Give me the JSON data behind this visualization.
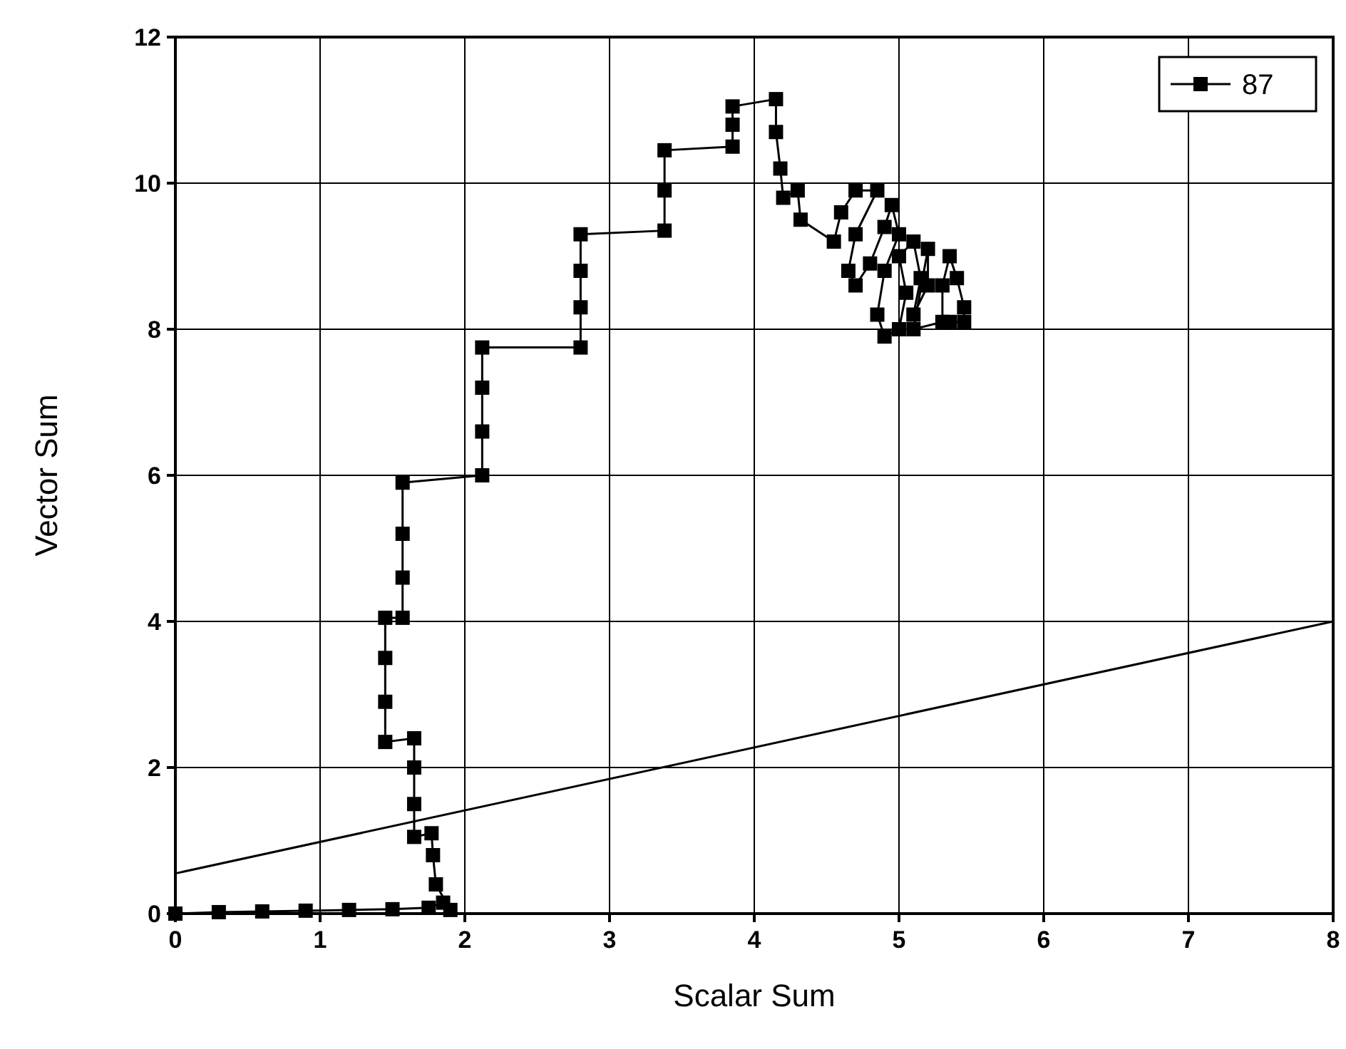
{
  "chart_data": {
    "type": "line",
    "xlabel": "Scalar Sum",
    "ylabel": "Vector Sum",
    "xlim": [
      0,
      8
    ],
    "ylim": [
      0,
      12
    ],
    "xticks": [
      0,
      1,
      2,
      3,
      4,
      5,
      6,
      7,
      8
    ],
    "yticks": [
      0,
      2,
      4,
      6,
      8,
      10,
      12
    ],
    "grid": true,
    "legend": "top right",
    "marker": "square",
    "line_style": "solid",
    "series": [
      {
        "name": "87",
        "color": "#000000",
        "x": [
          0,
          0.3,
          0.6,
          0.9,
          1.2,
          1.5,
          1.75,
          1.85,
          1.9,
          1.8,
          1.78,
          1.77,
          1.65,
          1.65,
          1.65,
          1.65,
          1.45,
          1.45,
          1.45,
          1.45,
          1.57,
          1.57,
          1.57,
          1.57,
          2.12,
          2.12,
          2.12,
          2.12,
          2.8,
          2.8,
          2.8,
          2.8,
          3.38,
          3.38,
          3.38,
          3.85,
          3.85,
          3.85,
          4.15,
          4.15,
          4.18,
          4.2,
          4.3,
          4.32,
          4.55,
          4.6,
          4.7,
          4.85,
          4.7,
          4.65,
          4.7,
          4.8,
          4.9,
          4.95,
          5.0,
          4.9,
          4.85,
          4.9,
          5.0,
          5.05,
          5.0,
          5.1,
          5.15,
          5.1,
          5.2,
          5.2,
          5.1,
          5.3,
          5.3,
          5.35,
          5.4,
          5.45,
          5.45,
          5.35
        ],
        "values": [
          0,
          0.02,
          0.03,
          0.04,
          0.05,
          0.06,
          0.08,
          0.15,
          0.05,
          0.4,
          0.8,
          1.1,
          1.05,
          1.5,
          2.0,
          2.4,
          2.35,
          2.9,
          3.5,
          4.05,
          4.05,
          4.6,
          5.2,
          5.9,
          6.0,
          6.6,
          7.2,
          7.75,
          7.75,
          8.3,
          8.8,
          9.3,
          9.35,
          9.9,
          10.45,
          10.5,
          10.8,
          11.05,
          11.15,
          10.7,
          10.2,
          9.8,
          9.9,
          9.5,
          9.2,
          9.6,
          9.9,
          9.9,
          9.3,
          8.8,
          8.6,
          8.9,
          9.4,
          9.7,
          9.3,
          8.8,
          8.2,
          7.9,
          8.0,
          8.5,
          9.0,
          9.2,
          8.7,
          8.2,
          8.6,
          9.1,
          8.0,
          8.1,
          8.6,
          9.0,
          8.7,
          8.3,
          8.1,
          8.1
        ]
      },
      {
        "type": "line",
        "marker": "none",
        "color": "#000000",
        "x": [
          0,
          8
        ],
        "values": [
          0.55,
          4.0
        ]
      }
    ]
  }
}
